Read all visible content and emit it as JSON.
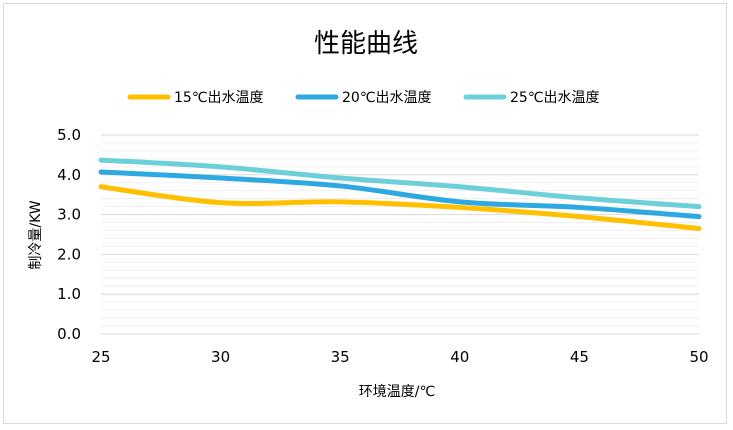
{
  "chart_data": {
    "type": "line",
    "title": "性能曲线",
    "xlabel": "环境温度/℃",
    "ylabel": "制冷量/KW",
    "x": [
      25,
      30,
      35,
      40,
      45,
      50
    ],
    "x_tick_labels": [
      "25",
      "30",
      "35",
      "40",
      "45",
      "50"
    ],
    "y_tick_labels": [
      "0.0",
      "1.0",
      "2.0",
      "3.0",
      "4.0",
      "5.0"
    ],
    "ylim": [
      0,
      5
    ],
    "xlim": [
      25,
      50
    ],
    "grid": true,
    "legend_position": "top",
    "series": [
      {
        "name": "15℃出水温度",
        "color": "#FFC000",
        "values": [
          3.7,
          3.3,
          3.32,
          3.18,
          2.95,
          2.65
        ]
      },
      {
        "name": "20℃出水温度",
        "color": "#2EA8E0",
        "values": [
          4.07,
          3.92,
          3.72,
          3.32,
          3.18,
          2.95
        ]
      },
      {
        "name": "25℃出水温度",
        "color": "#6DD0D8",
        "values": [
          4.37,
          4.2,
          3.92,
          3.7,
          3.42,
          3.2
        ]
      }
    ]
  }
}
